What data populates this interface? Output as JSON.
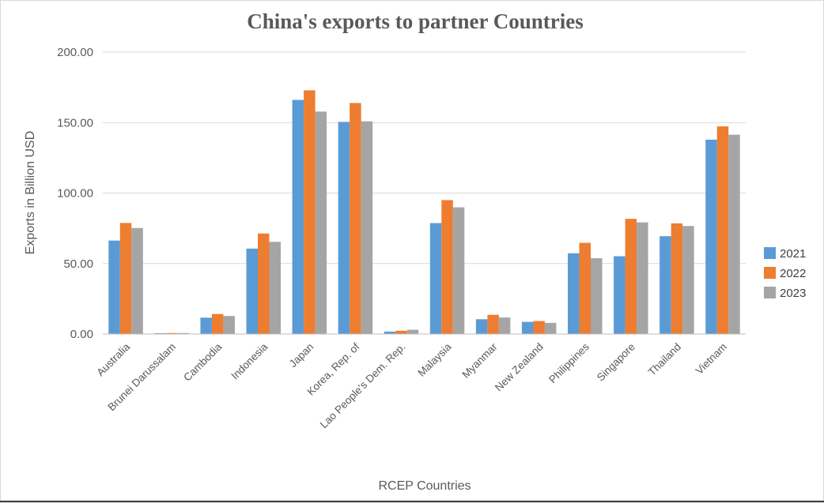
{
  "chart_data": {
    "type": "bar",
    "title": "China's exports to partner Countries",
    "xlabel": "RCEP Countries",
    "ylabel": "Exports in Billion USD",
    "ylim": [
      0,
      200
    ],
    "yticks": [
      "0.00",
      "50.00",
      "100.00",
      "150.00",
      "200.00"
    ],
    "grid": true,
    "legend_position": "right",
    "categories": [
      "Australia",
      "Brunei Darussalam",
      "Cambodia",
      "Indonesia",
      "Japan",
      "Korea, Rep. of",
      "Lao People's Dem. Rep.",
      "Malaysia",
      "Myanmar",
      "New Zealand",
      "Philippines",
      "Singapore",
      "Thailand",
      "Vietnam"
    ],
    "series": [
      {
        "name": "2021",
        "color": "#5b9bd5",
        "values": [
          66.3,
          0.6,
          11.6,
          60.6,
          166.1,
          150.5,
          1.7,
          78.7,
          10.5,
          8.6,
          57.3,
          55.2,
          69.4,
          137.9
        ]
      },
      {
        "name": "2022",
        "color": "#ed7d31",
        "values": [
          78.8,
          0.7,
          14.2,
          71.3,
          172.9,
          163.9,
          2.3,
          95.0,
          13.6,
          9.2,
          64.7,
          81.7,
          78.5,
          147.3
        ]
      },
      {
        "name": "2023",
        "color": "#a5a5a5",
        "values": [
          75.2,
          0.7,
          12.8,
          65.4,
          157.8,
          150.9,
          3.0,
          89.9,
          11.7,
          7.9,
          53.8,
          79.2,
          76.6,
          141.4
        ]
      }
    ]
  }
}
